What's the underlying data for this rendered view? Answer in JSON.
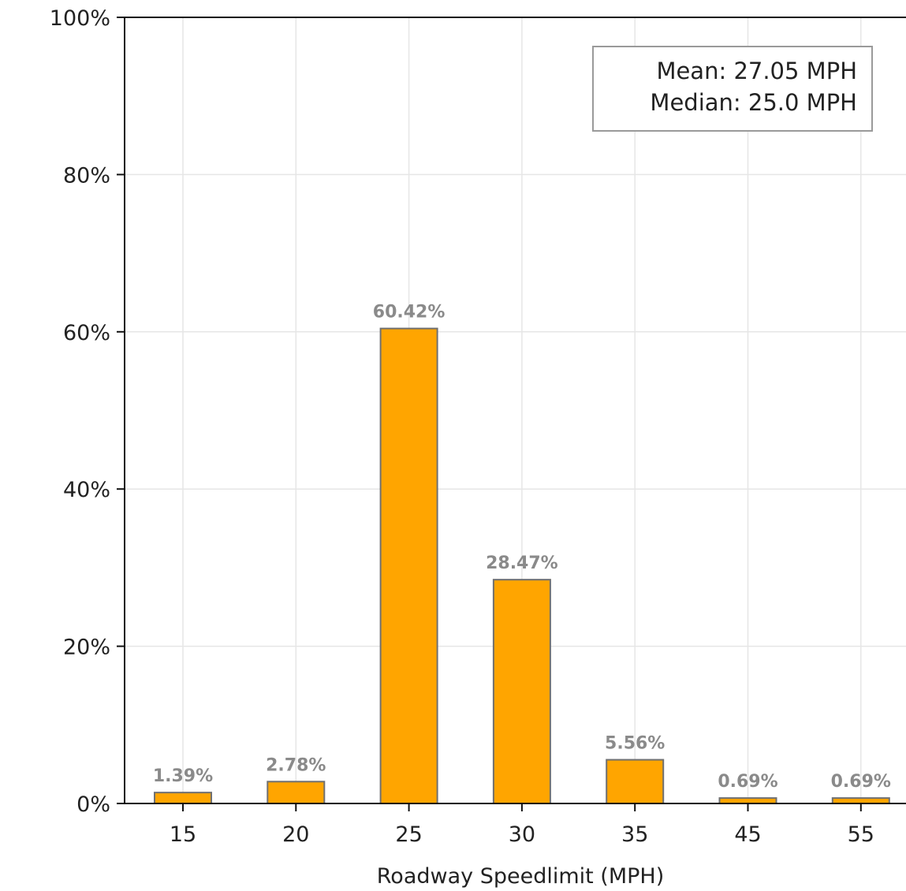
{
  "chart_data": {
    "type": "bar",
    "categories": [
      "15",
      "20",
      "25",
      "30",
      "35",
      "45",
      "55"
    ],
    "values": [
      1.39,
      2.78,
      60.42,
      28.47,
      5.56,
      0.69,
      0.69
    ],
    "data_labels": [
      "1.39%",
      "2.78%",
      "60.42%",
      "28.47%",
      "5.56%",
      "0.69%",
      "0.69%"
    ],
    "title": "",
    "xlabel": "Roadway Speedlimit (MPH)",
    "ylabel": "",
    "ylim": [
      0,
      100
    ],
    "yticks": [
      0,
      20,
      40,
      60,
      80,
      100
    ],
    "ytick_labels": [
      "0%",
      "20%",
      "40%",
      "60%",
      "80%",
      "100%"
    ],
    "grid": true,
    "bar_color": "#ffa500",
    "bar_edge_color": "#707070",
    "data_label_color": "#8a8a8a",
    "stats_box": {
      "placement": "top-right",
      "mean": "Mean: 27.05 MPH",
      "median": "Median: 25.0 MPH"
    }
  }
}
